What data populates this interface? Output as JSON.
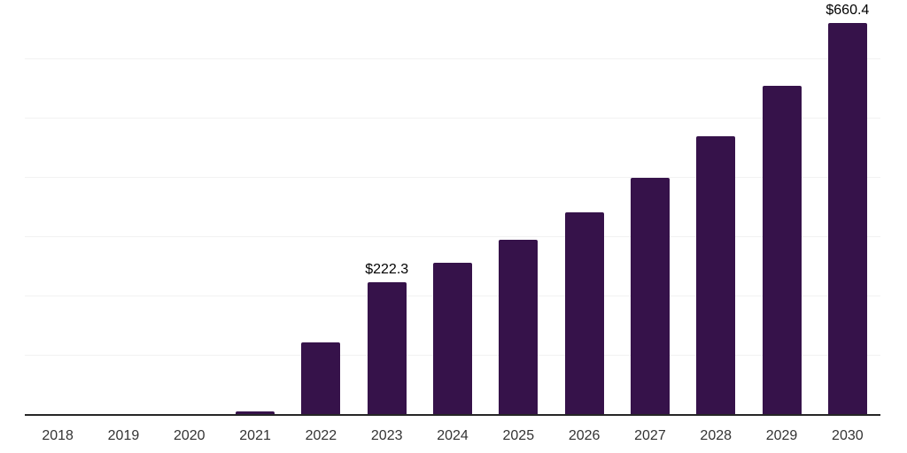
{
  "chart_data": {
    "type": "bar",
    "title": "",
    "xlabel": "",
    "ylabel": "",
    "categories": [
      "2018",
      "2019",
      "2020",
      "2021",
      "2022",
      "2023",
      "2024",
      "2025",
      "2026",
      "2027",
      "2028",
      "2029",
      "2030"
    ],
    "values": [
      0,
      0,
      0,
      4.5,
      121,
      222.3,
      255,
      294,
      340,
      398,
      469,
      554,
      660.4
    ],
    "annotations": [
      {
        "category": "2023",
        "index": 5,
        "label": "$222.3"
      },
      {
        "category": "2030",
        "index": 12,
        "label": "$660.4"
      }
    ],
    "ylim": [
      0,
      700
    ],
    "gridline_step": 100,
    "grid": true,
    "legend_position": "none",
    "bar_color": "#36124a",
    "gridline_color": "#f2f2f2",
    "axis_color": "#262626",
    "tick_label_color": "#333333",
    "value_label_color": "#000000"
  }
}
